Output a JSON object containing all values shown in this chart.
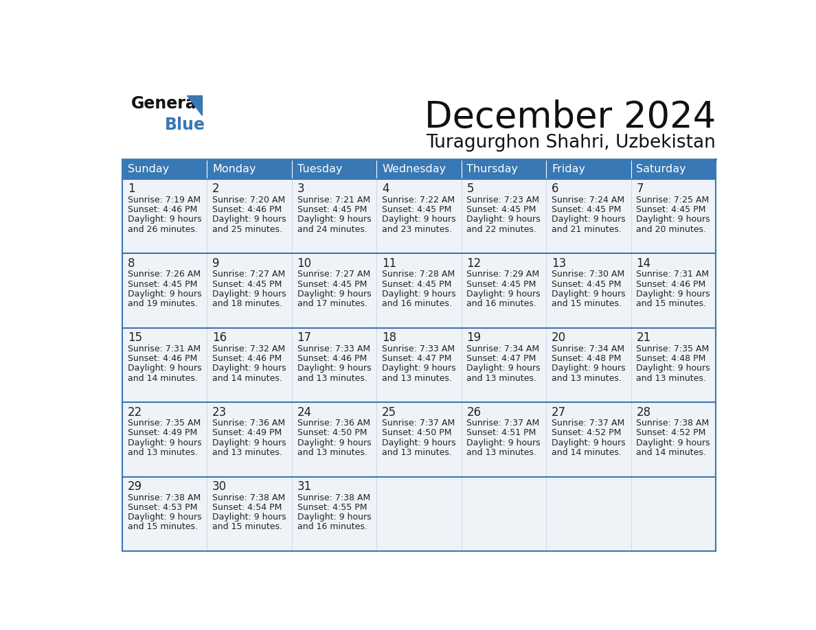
{
  "title": "December 2024",
  "subtitle": "Turagurghon Shahri, Uzbekistan",
  "header_color": "#3878b4",
  "header_text_color": "#ffffff",
  "bg_color": "#ffffff",
  "cell_bg_color": "#eff3f7",
  "border_color": "#3878b4",
  "text_color": "#222222",
  "days_of_week": [
    "Sunday",
    "Monday",
    "Tuesday",
    "Wednesday",
    "Thursday",
    "Friday",
    "Saturday"
  ],
  "calendar_data": [
    [
      {
        "day": "1",
        "sunrise": "7:19 AM",
        "sunset": "4:46 PM",
        "daylight_line1": "Daylight: 9 hours",
        "daylight_line2": "and 26 minutes."
      },
      {
        "day": "2",
        "sunrise": "7:20 AM",
        "sunset": "4:46 PM",
        "daylight_line1": "Daylight: 9 hours",
        "daylight_line2": "and 25 minutes."
      },
      {
        "day": "3",
        "sunrise": "7:21 AM",
        "sunset": "4:45 PM",
        "daylight_line1": "Daylight: 9 hours",
        "daylight_line2": "and 24 minutes."
      },
      {
        "day": "4",
        "sunrise": "7:22 AM",
        "sunset": "4:45 PM",
        "daylight_line1": "Daylight: 9 hours",
        "daylight_line2": "and 23 minutes."
      },
      {
        "day": "5",
        "sunrise": "7:23 AM",
        "sunset": "4:45 PM",
        "daylight_line1": "Daylight: 9 hours",
        "daylight_line2": "and 22 minutes."
      },
      {
        "day": "6",
        "sunrise": "7:24 AM",
        "sunset": "4:45 PM",
        "daylight_line1": "Daylight: 9 hours",
        "daylight_line2": "and 21 minutes."
      },
      {
        "day": "7",
        "sunrise": "7:25 AM",
        "sunset": "4:45 PM",
        "daylight_line1": "Daylight: 9 hours",
        "daylight_line2": "and 20 minutes."
      }
    ],
    [
      {
        "day": "8",
        "sunrise": "7:26 AM",
        "sunset": "4:45 PM",
        "daylight_line1": "Daylight: 9 hours",
        "daylight_line2": "and 19 minutes."
      },
      {
        "day": "9",
        "sunrise": "7:27 AM",
        "sunset": "4:45 PM",
        "daylight_line1": "Daylight: 9 hours",
        "daylight_line2": "and 18 minutes."
      },
      {
        "day": "10",
        "sunrise": "7:27 AM",
        "sunset": "4:45 PM",
        "daylight_line1": "Daylight: 9 hours",
        "daylight_line2": "and 17 minutes."
      },
      {
        "day": "11",
        "sunrise": "7:28 AM",
        "sunset": "4:45 PM",
        "daylight_line1": "Daylight: 9 hours",
        "daylight_line2": "and 16 minutes."
      },
      {
        "day": "12",
        "sunrise": "7:29 AM",
        "sunset": "4:45 PM",
        "daylight_line1": "Daylight: 9 hours",
        "daylight_line2": "and 16 minutes."
      },
      {
        "day": "13",
        "sunrise": "7:30 AM",
        "sunset": "4:45 PM",
        "daylight_line1": "Daylight: 9 hours",
        "daylight_line2": "and 15 minutes."
      },
      {
        "day": "14",
        "sunrise": "7:31 AM",
        "sunset": "4:46 PM",
        "daylight_line1": "Daylight: 9 hours",
        "daylight_line2": "and 15 minutes."
      }
    ],
    [
      {
        "day": "15",
        "sunrise": "7:31 AM",
        "sunset": "4:46 PM",
        "daylight_line1": "Daylight: 9 hours",
        "daylight_line2": "and 14 minutes."
      },
      {
        "day": "16",
        "sunrise": "7:32 AM",
        "sunset": "4:46 PM",
        "daylight_line1": "Daylight: 9 hours",
        "daylight_line2": "and 14 minutes."
      },
      {
        "day": "17",
        "sunrise": "7:33 AM",
        "sunset": "4:46 PM",
        "daylight_line1": "Daylight: 9 hours",
        "daylight_line2": "and 13 minutes."
      },
      {
        "day": "18",
        "sunrise": "7:33 AM",
        "sunset": "4:47 PM",
        "daylight_line1": "Daylight: 9 hours",
        "daylight_line2": "and 13 minutes."
      },
      {
        "day": "19",
        "sunrise": "7:34 AM",
        "sunset": "4:47 PM",
        "daylight_line1": "Daylight: 9 hours",
        "daylight_line2": "and 13 minutes."
      },
      {
        "day": "20",
        "sunrise": "7:34 AM",
        "sunset": "4:48 PM",
        "daylight_line1": "Daylight: 9 hours",
        "daylight_line2": "and 13 minutes."
      },
      {
        "day": "21",
        "sunrise": "7:35 AM",
        "sunset": "4:48 PM",
        "daylight_line1": "Daylight: 9 hours",
        "daylight_line2": "and 13 minutes."
      }
    ],
    [
      {
        "day": "22",
        "sunrise": "7:35 AM",
        "sunset": "4:49 PM",
        "daylight_line1": "Daylight: 9 hours",
        "daylight_line2": "and 13 minutes."
      },
      {
        "day": "23",
        "sunrise": "7:36 AM",
        "sunset": "4:49 PM",
        "daylight_line1": "Daylight: 9 hours",
        "daylight_line2": "and 13 minutes."
      },
      {
        "day": "24",
        "sunrise": "7:36 AM",
        "sunset": "4:50 PM",
        "daylight_line1": "Daylight: 9 hours",
        "daylight_line2": "and 13 minutes."
      },
      {
        "day": "25",
        "sunrise": "7:37 AM",
        "sunset": "4:50 PM",
        "daylight_line1": "Daylight: 9 hours",
        "daylight_line2": "and 13 minutes."
      },
      {
        "day": "26",
        "sunrise": "7:37 AM",
        "sunset": "4:51 PM",
        "daylight_line1": "Daylight: 9 hours",
        "daylight_line2": "and 13 minutes."
      },
      {
        "day": "27",
        "sunrise": "7:37 AM",
        "sunset": "4:52 PM",
        "daylight_line1": "Daylight: 9 hours",
        "daylight_line2": "and 14 minutes."
      },
      {
        "day": "28",
        "sunrise": "7:38 AM",
        "sunset": "4:52 PM",
        "daylight_line1": "Daylight: 9 hours",
        "daylight_line2": "and 14 minutes."
      }
    ],
    [
      {
        "day": "29",
        "sunrise": "7:38 AM",
        "sunset": "4:53 PM",
        "daylight_line1": "Daylight: 9 hours",
        "daylight_line2": "and 15 minutes."
      },
      {
        "day": "30",
        "sunrise": "7:38 AM",
        "sunset": "4:54 PM",
        "daylight_line1": "Daylight: 9 hours",
        "daylight_line2": "and 15 minutes."
      },
      {
        "day": "31",
        "sunrise": "7:38 AM",
        "sunset": "4:55 PM",
        "daylight_line1": "Daylight: 9 hours",
        "daylight_line2": "and 16 minutes."
      },
      null,
      null,
      null,
      null
    ]
  ]
}
